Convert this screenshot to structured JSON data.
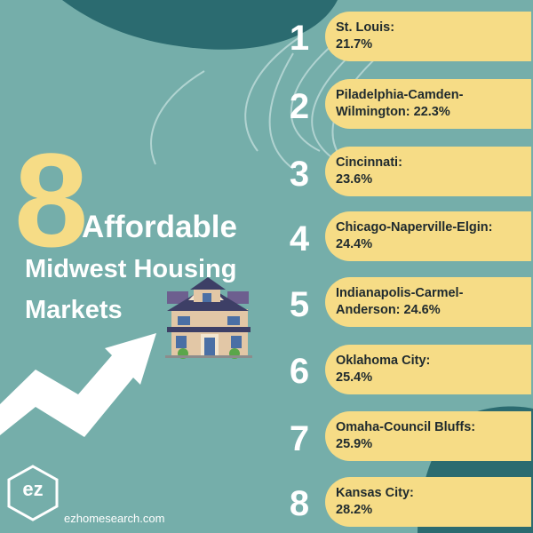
{
  "headline": {
    "number": "8",
    "line1": "Affordable",
    "line2": "Midwest Housing",
    "line3": "Markets"
  },
  "markets": [
    {
      "rank": "1",
      "line1": "St. Louis:",
      "line2": "21.7%"
    },
    {
      "rank": "2",
      "line1": "Piladelphia-Camden-",
      "line2": "Wilmington: 22.3%"
    },
    {
      "rank": "3",
      "line1": "Cincinnati:",
      "line2": "23.6%"
    },
    {
      "rank": "4",
      "line1": "Chicago-Naperville-Elgin:",
      "line2": "24.4%"
    },
    {
      "rank": "5",
      "line1": "Indianapolis-Carmel-",
      "line2": "Anderson: 24.6%"
    },
    {
      "rank": "6",
      "line1": "Oklahoma City:",
      "line2": "25.4%"
    },
    {
      "rank": "7",
      "line1": "Omaha-Council Bluffs:",
      "line2": "25.9%"
    },
    {
      "rank": "8",
      "line1": "Kansas City:",
      "line2": "28.2%"
    }
  ],
  "logo": {
    "text": "ez"
  },
  "website": "ezhomesearch.com",
  "colors": {
    "background": "#75aeaa",
    "dark_teal": "#2b6b70",
    "accent_yellow": "#f6dc86",
    "text_dark": "#1f2a2e",
    "white": "#ffffff"
  },
  "icons": [
    "house-icon",
    "trend-arrow-icon",
    "hexagon-logo-icon"
  ]
}
